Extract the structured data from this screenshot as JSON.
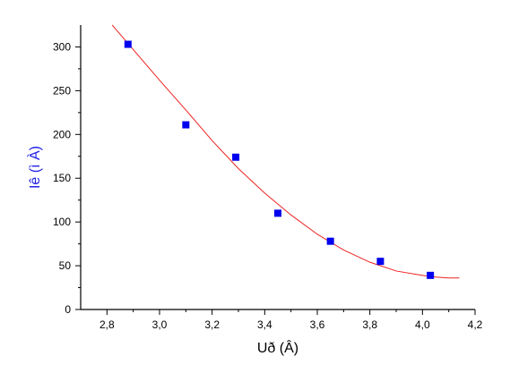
{
  "chart_data": {
    "type": "scatter",
    "title": "",
    "xlabel": "Uð (Â)",
    "ylabel": "Iê (ì À)",
    "xlim": [
      2.7,
      4.2
    ],
    "ylim": [
      0,
      325
    ],
    "x_ticks": [
      "2,8",
      "3,0",
      "3,2",
      "3,4",
      "3,6",
      "3,8",
      "4,0",
      "4,2"
    ],
    "x_tick_values": [
      2.8,
      3.0,
      3.2,
      3.4,
      3.6,
      3.8,
      4.0,
      4.2
    ],
    "y_ticks": [
      "0",
      "50",
      "100",
      "150",
      "200",
      "250",
      "300"
    ],
    "y_tick_values": [
      0,
      50,
      100,
      150,
      200,
      250,
      300
    ],
    "grid": false,
    "series": [
      {
        "type": "scatter",
        "color": "#0000ee",
        "marker": "square",
        "x": [
          2.88,
          3.1,
          3.29,
          3.45,
          3.65,
          3.84,
          4.03
        ],
        "y": [
          303,
          211,
          174,
          110,
          78,
          55,
          39
        ]
      },
      {
        "type": "line",
        "color": "#ee2222",
        "x": [
          2.82,
          2.9,
          3.0,
          3.1,
          3.2,
          3.3,
          3.4,
          3.5,
          3.6,
          3.7,
          3.8,
          3.9,
          4.0,
          4.05,
          4.1,
          4.14
        ],
        "y": [
          325,
          297,
          262,
          228,
          193,
          161,
          133,
          108,
          86,
          68,
          54,
          44,
          39,
          37,
          36,
          36
        ]
      }
    ]
  }
}
